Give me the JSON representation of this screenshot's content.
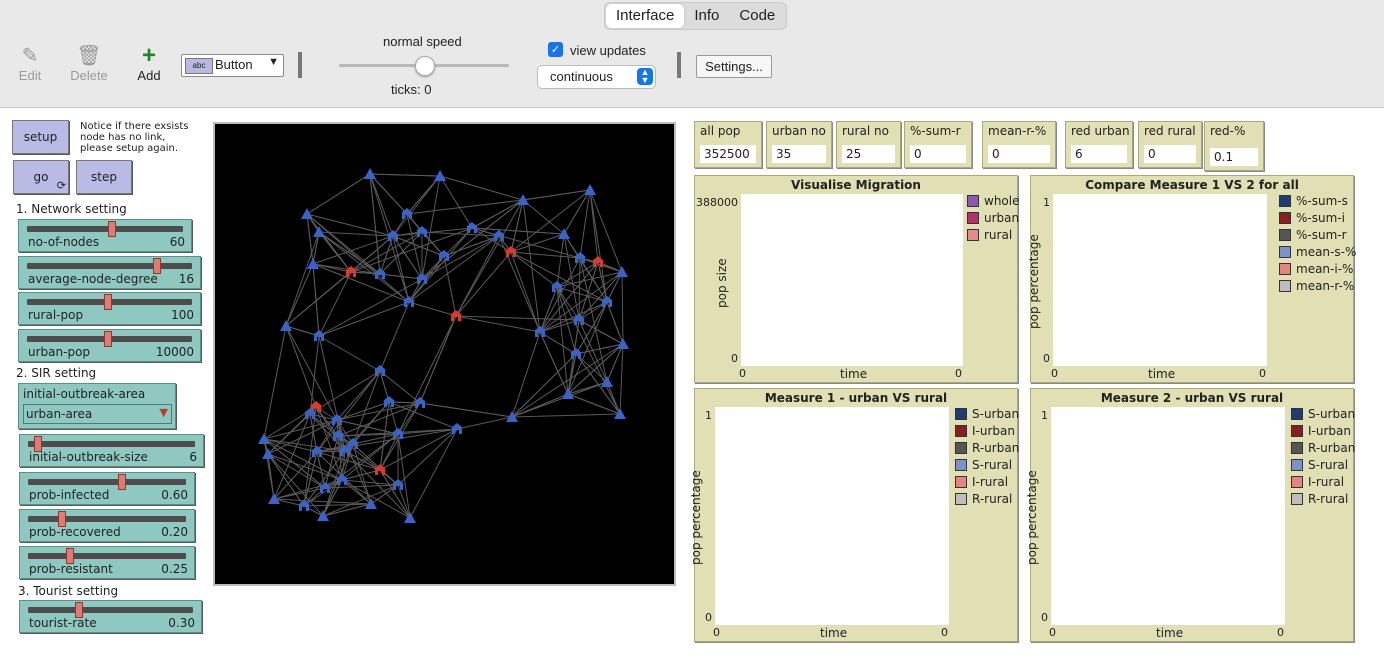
{
  "tabs": [
    "Interface",
    "Info",
    "Code"
  ],
  "toolbar": {
    "edit": "Edit",
    "delete": "Delete",
    "add": "Add",
    "widget_type": "Button",
    "speed_label": "normal speed",
    "speed_value": 0.5,
    "ticks": "ticks: 0",
    "view_updates_label": "view updates",
    "view_updates_checked": true,
    "update_mode": "continuous",
    "settings": "Settings..."
  },
  "buttons": {
    "setup": "setup",
    "go": "go",
    "step": "step"
  },
  "note": "Notice if there exsists node has no link, please setup again.",
  "sections": {
    "network": "1. Network setting",
    "sir": "2. SIR setting",
    "tourist": "3. Tourist setting"
  },
  "sliders": [
    {
      "label": "no-of-nodes",
      "value": "60",
      "fraction": 0.55
    },
    {
      "label": "average-node-degree",
      "value": "16",
      "fraction": 0.8
    },
    {
      "label": "rural-pop",
      "value": "100",
      "fraction": 0.49
    },
    {
      "label": "urban-pop",
      "value": "10000",
      "fraction": 0.49
    },
    {
      "label": "initial-outbreak-size",
      "value": "6",
      "fraction": 0.04
    },
    {
      "label": "prob-infected",
      "value": "0.60",
      "fraction": 0.6
    },
    {
      "label": "prob-recovered",
      "value": "0.20",
      "fraction": 0.2
    },
    {
      "label": "prob-resistant",
      "value": "0.25",
      "fraction": 0.25
    },
    {
      "label": "tourist-rate",
      "value": "0.30",
      "fraction": 0.3
    }
  ],
  "chooser": {
    "label": "initial-outbreak-area",
    "value": "urban-area"
  },
  "monitors": [
    {
      "label": "all pop",
      "value": "352500"
    },
    {
      "label": "urban no",
      "value": "35"
    },
    {
      "label": "rural no",
      "value": "25"
    },
    {
      "label": "%-sum-r",
      "value": "0"
    },
    {
      "label": "mean-r-%",
      "value": "0"
    },
    {
      "label": "red urban",
      "value": "6"
    },
    {
      "label": "red rural",
      "value": "0"
    },
    {
      "label": "red-%",
      "value": "0.1"
    }
  ],
  "plots": [
    {
      "title": "Visualise Migration",
      "ylabel": "pop size",
      "xlabel": "time",
      "ymax": "388000",
      "ymin": "0",
      "xmin": "0",
      "xmax": "0",
      "legend": [
        {
          "name": "whole",
          "color": "#8a5ab5"
        },
        {
          "name": "urban",
          "color": "#b3306e"
        },
        {
          "name": "rural",
          "color": "#e78a8e"
        }
      ]
    },
    {
      "title": "Compare Measure 1 VS 2 for all",
      "ylabel": "pop percentage",
      "xlabel": "time",
      "ymax": "1",
      "ymin": "0",
      "xmin": "0",
      "xmax": "0",
      "legend": [
        {
          "name": "%-sum-s",
          "color": "#213b75"
        },
        {
          "name": "%-sum-i",
          "color": "#8a1e1e"
        },
        {
          "name": "%-sum-r",
          "color": "#555555"
        },
        {
          "name": "mean-s-%",
          "color": "#7b93c9"
        },
        {
          "name": "mean-i-%",
          "color": "#e58480"
        },
        {
          "name": "mean-r-%",
          "color": "#bdbdbd"
        }
      ]
    },
    {
      "title": "Measure 1 - urban VS rural",
      "ylabel": "pop percentage",
      "xlabel": "time",
      "ymax": "1",
      "ymin": "0",
      "xmin": "0",
      "xmax": "0",
      "legend": [
        {
          "name": "S-urban",
          "color": "#213b75"
        },
        {
          "name": "I-urban",
          "color": "#8a1e1e"
        },
        {
          "name": "R-urban",
          "color": "#555555"
        },
        {
          "name": "S-rural",
          "color": "#7b93c9"
        },
        {
          "name": "I-rural",
          "color": "#e58480"
        },
        {
          "name": "R-rural",
          "color": "#bdbdbd"
        }
      ]
    },
    {
      "title": "Measure 2 - urban VS rural",
      "ylabel": "pop percentage",
      "xlabel": "time",
      "ymax": "1",
      "ymin": "0",
      "xmin": "0",
      "xmax": "0",
      "legend": [
        {
          "name": "S-urban",
          "color": "#213b75"
        },
        {
          "name": "I-urban",
          "color": "#8a1e1e"
        },
        {
          "name": "R-urban",
          "color": "#555555"
        },
        {
          "name": "S-rural",
          "color": "#7b93c9"
        },
        {
          "name": "I-rural",
          "color": "#e58480"
        },
        {
          "name": "R-rural",
          "color": "#bdbdbd"
        }
      ]
    }
  ],
  "colors": {
    "urban_node": "#3b63c4",
    "rural_node": "#3b63c4",
    "infected_node": "#d73a2e",
    "link": "#5a5a5a"
  }
}
